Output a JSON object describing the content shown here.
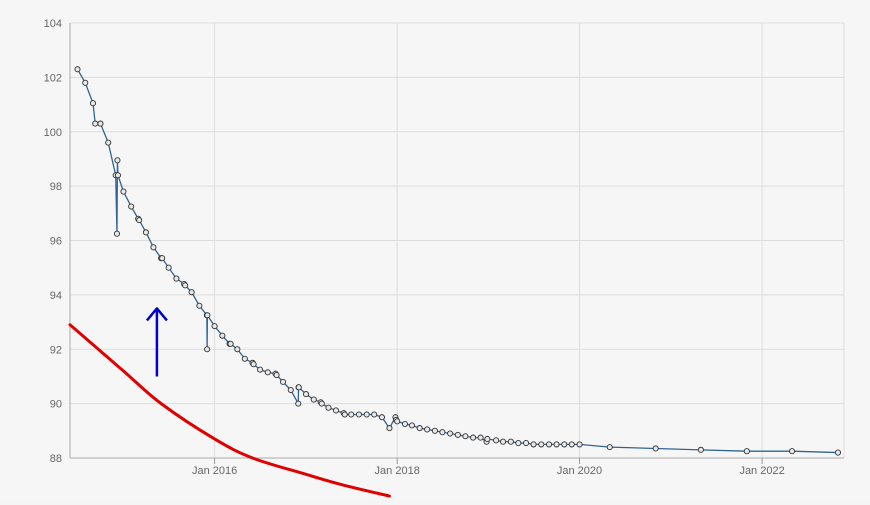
{
  "chart_data": {
    "type": "line",
    "title": "",
    "xlabel": "",
    "ylabel": "",
    "x_axis": {
      "type": "date",
      "range": [
        "2014-06-01",
        "2022-11-25"
      ],
      "tick_values": [
        "2016-01-01",
        "2018-01-01",
        "2020-01-01",
        "2022-01-01"
      ],
      "tick_labels": [
        "Jan 2016",
        "Jan 2018",
        "Jan 2020",
        "Jan 2022"
      ]
    },
    "y_axis": {
      "range": [
        88,
        104
      ],
      "tick_values": [
        88,
        90,
        92,
        94,
        96,
        98,
        100,
        102,
        104
      ],
      "tick_labels": [
        "88",
        "90",
        "92",
        "94",
        "96",
        "98",
        "100",
        "102",
        "104"
      ]
    },
    "grid": true,
    "legend": "none",
    "colors": {
      "line": "#2f6496",
      "marker_fill": "#e8e8e8",
      "marker_stroke": "#333333",
      "grid": "#dddddd",
      "curve_annotation": "#e00000",
      "arrow_annotation": "#0000cc"
    },
    "series": [
      {
        "x": [
          "2014-07-01",
          "2014-08-01",
          "2014-09-01",
          "2014-09-10",
          "2014-10-01",
          "2014-11-01",
          "2014-12-01",
          "2014-12-06",
          "2014-12-08",
          "2014-12-10",
          "2015-01-01",
          "2015-02-01",
          "2015-03-01",
          "2015-03-05",
          "2015-04-01",
          "2015-05-01",
          "2015-06-01",
          "2015-06-05",
          "2015-07-01",
          "2015-08-01",
          "2015-09-01",
          "2015-09-05",
          "2015-10-01",
          "2015-11-01",
          "2015-12-01",
          "2015-12-02",
          "2015-12-03",
          "2016-01-01",
          "2016-02-01",
          "2016-03-01",
          "2016-03-05",
          "2016-04-01",
          "2016-05-01",
          "2016-06-01",
          "2016-06-05",
          "2016-07-01",
          "2016-08-01",
          "2016-09-01",
          "2016-09-05",
          "2016-10-01",
          "2016-11-01",
          "2016-12-01",
          "2016-12-02",
          "2016-12-03",
          "2017-01-01",
          "2017-02-01",
          "2017-03-01",
          "2017-03-05",
          "2017-04-01",
          "2017-05-01",
          "2017-06-01",
          "2017-06-05",
          "2017-07-01",
          "2017-08-01",
          "2017-09-01",
          "2017-10-01",
          "2017-11-01",
          "2017-12-01",
          "2017-12-25",
          "2017-12-28",
          "2018-01-01",
          "2018-02-01",
          "2018-03-01",
          "2018-04-01",
          "2018-05-01",
          "2018-06-01",
          "2018-07-01",
          "2018-08-01",
          "2018-09-01",
          "2018-10-01",
          "2018-11-01",
          "2018-12-01",
          "2018-12-25",
          "2018-12-28",
          "2019-02-01",
          "2019-03-01",
          "2019-04-01",
          "2019-05-01",
          "2019-06-01",
          "2019-07-01",
          "2019-08-01",
          "2019-09-01",
          "2019-10-01",
          "2019-11-01",
          "2019-12-01",
          "2020-01-01",
          "2020-05-01",
          "2020-11-01",
          "2021-05-01",
          "2021-11-01",
          "2022-05-01",
          "2022-11-01"
        ],
        "y": [
          102.3,
          101.8,
          101.05,
          100.3,
          100.3,
          99.6,
          98.4,
          96.25,
          98.95,
          98.4,
          97.8,
          97.25,
          96.8,
          96.75,
          96.3,
          95.75,
          95.35,
          95.35,
          95.0,
          94.6,
          94.4,
          94.35,
          94.1,
          93.6,
          93.25,
          92.0,
          93.25,
          92.85,
          92.5,
          92.2,
          92.2,
          92.0,
          91.65,
          91.5,
          91.45,
          91.25,
          91.15,
          91.1,
          91.05,
          90.8,
          90.5,
          90.0,
          90.6,
          90.6,
          90.35,
          90.15,
          90.05,
          90.0,
          89.85,
          89.75,
          89.65,
          89.6,
          89.6,
          89.6,
          89.6,
          89.6,
          89.5,
          89.1,
          89.5,
          89.4,
          89.35,
          89.25,
          89.2,
          89.1,
          89.05,
          89.0,
          88.95,
          88.9,
          88.85,
          88.8,
          88.75,
          88.75,
          88.6,
          88.7,
          88.65,
          88.6,
          88.6,
          88.55,
          88.55,
          88.5,
          88.5,
          88.5,
          88.5,
          88.5,
          88.5,
          88.5,
          88.4,
          88.35,
          88.3,
          88.25,
          88.25,
          88.2
        ]
      }
    ],
    "annotations": [
      {
        "type": "curve",
        "color": "#e00000",
        "x": [
          "2014-06-01",
          "2015-01-01",
          "2015-06-01",
          "2016-01-01",
          "2016-06-01",
          "2017-01-01",
          "2017-06-01",
          "2017-12-01"
        ],
        "y": [
          92.9,
          91.2,
          90.0,
          88.7,
          88.0,
          87.4,
          87.0,
          86.6
        ]
      },
      {
        "type": "arrow",
        "color": "#0000cc",
        "x": "2015-05-15",
        "y_from": 91.0,
        "y_to": 93.5
      }
    ]
  }
}
